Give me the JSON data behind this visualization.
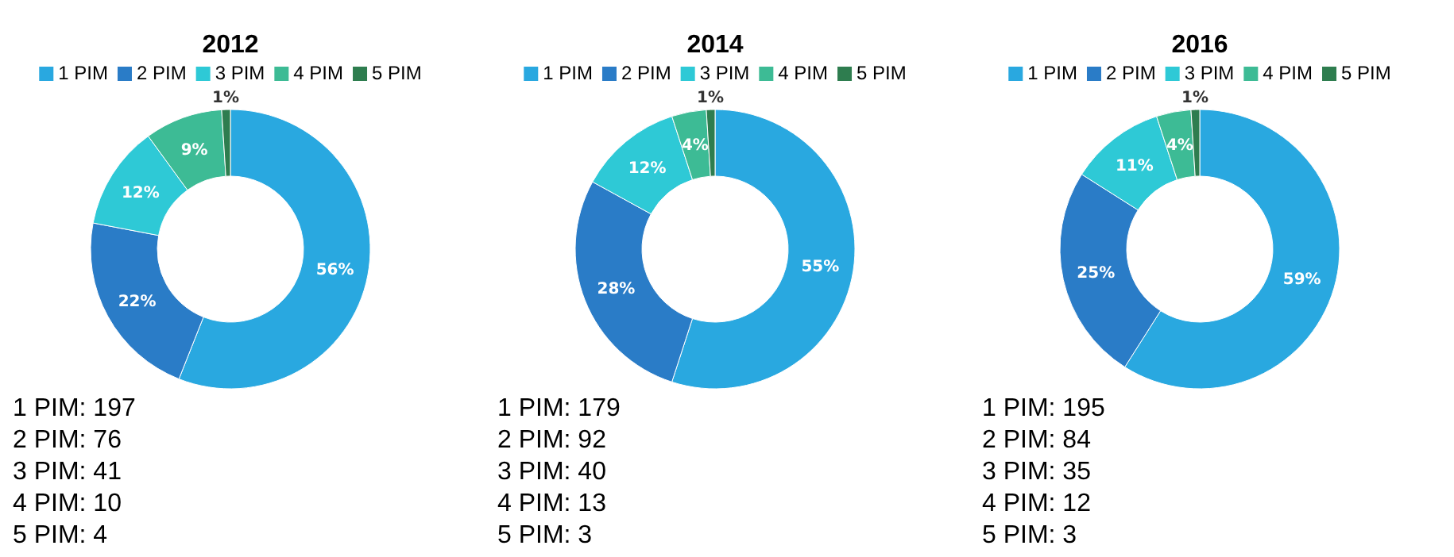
{
  "chart_data": [
    {
      "type": "donut",
      "title": "2012",
      "categories": [
        "1 PIM",
        "2 PIM",
        "3 PIM",
        "4 PIM",
        "5 PIM"
      ],
      "values": [
        56,
        22,
        12,
        9,
        1
      ],
      "colors": [
        "#29a8e0",
        "#2a7cc7",
        "#2ec9d6",
        "#3dbb95",
        "#2e7d4f"
      ],
      "value_labels": [
        "56%",
        "22%",
        "12%",
        "9%",
        "1%"
      ],
      "legend": "top",
      "annotations": [
        "1 PIM: 197",
        "2 PIM: 76",
        "3 PIM: 41",
        "4 PIM: 10",
        "5 PIM: 4"
      ]
    },
    {
      "type": "donut",
      "title": "2014",
      "categories": [
        "1 PIM",
        "2 PIM",
        "3 PIM",
        "4 PIM",
        "5 PIM"
      ],
      "values": [
        55,
        28,
        12,
        4,
        1
      ],
      "colors": [
        "#29a8e0",
        "#2a7cc7",
        "#2ec9d6",
        "#3dbb95",
        "#2e7d4f"
      ],
      "value_labels": [
        "55%",
        "28%",
        "12%",
        "4%",
        "1%"
      ],
      "legend": "top",
      "annotations": [
        "1 PIM: 179",
        "2 PIM: 92",
        "3 PIM: 40",
        "4 PIM: 13",
        "5 PIM: 3"
      ]
    },
    {
      "type": "donut",
      "title": "2016",
      "categories": [
        "1 PIM",
        "2 PIM",
        "3 PIM",
        "4 PIM",
        "5 PIM"
      ],
      "values": [
        59,
        25,
        11,
        4,
        1
      ],
      "colors": [
        "#29a8e0",
        "#2a7cc7",
        "#2ec9d6",
        "#3dbb95",
        "#2e7d4f"
      ],
      "value_labels": [
        "59%",
        "25%",
        "11%",
        "4%",
        "1%"
      ],
      "legend": "top",
      "annotations": [
        "1 PIM: 195",
        "2 PIM: 84",
        "3 PIM: 35",
        "4 PIM: 12",
        "5 PIM: 3"
      ]
    }
  ]
}
